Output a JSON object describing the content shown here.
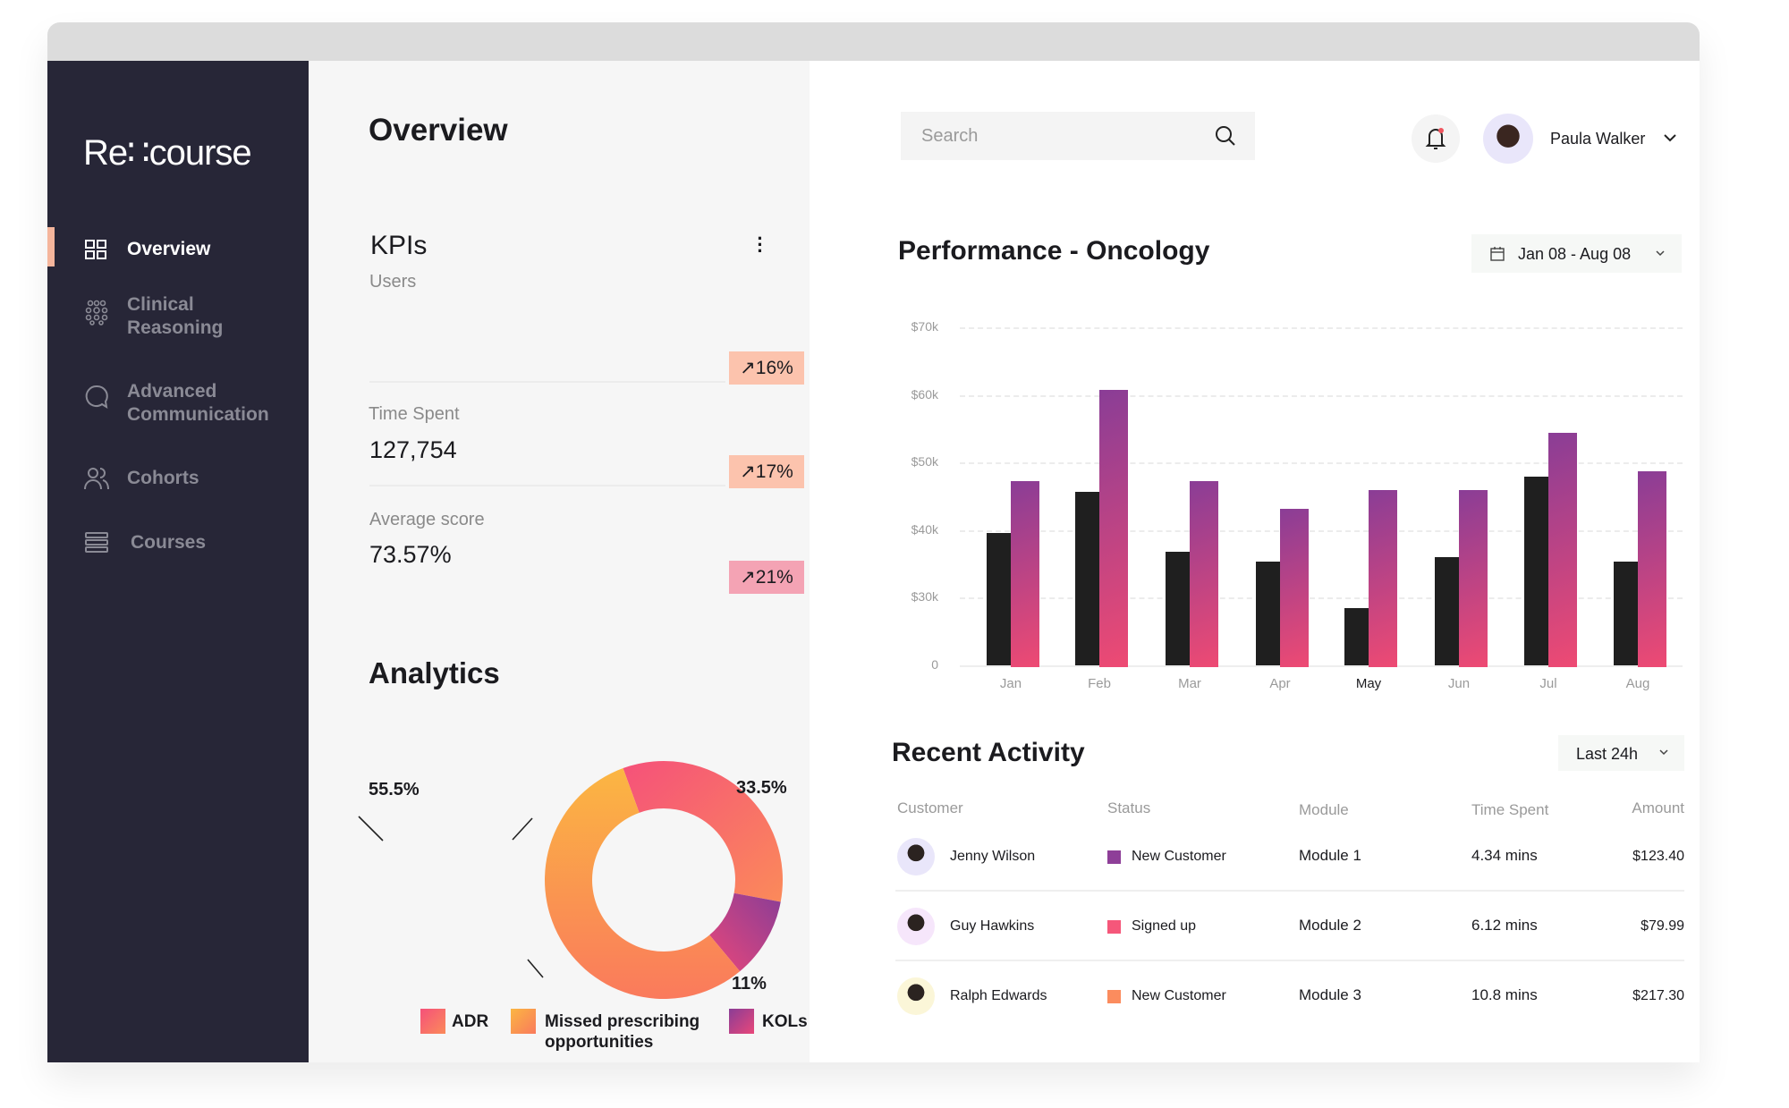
{
  "sidebar": {
    "logo": "Re∷course",
    "items": [
      {
        "label": "Overview",
        "icon": "grid-icon",
        "active": true
      },
      {
        "label": "Clinical Reasoning",
        "icon": "dots-cluster-icon"
      },
      {
        "label": "Advanced Communication",
        "icon": "chat-bubble-icon"
      },
      {
        "label": "Cohorts",
        "icon": "users-icon"
      },
      {
        "label": "Courses",
        "icon": "list-icon"
      }
    ],
    "accent": "#f5b59c"
  },
  "middle": {
    "title": "Overview",
    "kpis": {
      "title": "KPIs",
      "items": [
        {
          "label": "Users",
          "value": "",
          "change": "16%",
          "badge_color": "#fcc3ad"
        },
        {
          "label": "Time Spent",
          "value": "127,754",
          "change": "17%",
          "badge_color": "#fcc3ad"
        },
        {
          "label": "Average score",
          "value": "73.57%",
          "change": "21%",
          "badge_color": "#f4a3b4"
        }
      ]
    },
    "analytics": {
      "title": "Analytics",
      "labels": {
        "orange": "55.5%",
        "red": "33.5%",
        "purple": "11%"
      },
      "legend": [
        {
          "label": "ADR",
          "color": "#f76b6b"
        },
        {
          "label": "Missed prescribing opportunities",
          "color": "#fba24a"
        },
        {
          "label": "KOLs",
          "color": "#8e3f98"
        }
      ]
    }
  },
  "header": {
    "search_placeholder": "Search",
    "user_name": "Paula Walker"
  },
  "performance": {
    "title": "Performance - Oncology",
    "date_range": "Jan 08 - Aug 08"
  },
  "chart_data": {
    "type": "bar",
    "categories": [
      "Jan",
      "Feb",
      "Mar",
      "Apr",
      "May",
      "Jun",
      "Jul",
      "Aug"
    ],
    "highlighted_category": "May",
    "series": [
      {
        "values": [
          39.6,
          45.7,
          36.8,
          35.3,
          25.2,
          36.0,
          47.9,
          35.4
        ],
        "color": "#1c1c1c"
      },
      {
        "values": [
          47.3,
          60.7,
          47.3,
          43.1,
          45.9,
          45.9,
          54.4,
          48.7
        ],
        "color": "gradient #8a3d96 to #ee4a73"
      }
    ],
    "y_ticks": [
      0,
      30,
      40,
      50,
      60,
      70
    ],
    "y_tick_labels": [
      "0",
      "$30k",
      "$40k",
      "$50k",
      "$60k",
      "$70k"
    ],
    "unit": "$k",
    "grid": true
  },
  "activity": {
    "title": "Recent Activity",
    "filter": "Last 24h",
    "columns": [
      "Customer",
      "Status",
      "Module",
      "Time Spent",
      "Amount"
    ],
    "rows": [
      {
        "customer": "Jenny Wilson",
        "status": "New Customer",
        "status_color": "#8e3f98",
        "module": "Module 1",
        "time": "4.34 mins",
        "amount": "$123.40"
      },
      {
        "customer": "Guy Hawkins",
        "status": "Signed up",
        "status_color": "#f5577a",
        "module": "Module 2",
        "time": "6.12 mins",
        "amount": "$79.99"
      },
      {
        "customer": "Ralph Edwards",
        "status": "New Customer",
        "status_color": "#fb8c5e",
        "module": "Module 3",
        "time": "10.8 mins",
        "amount": "$217.30"
      }
    ]
  }
}
